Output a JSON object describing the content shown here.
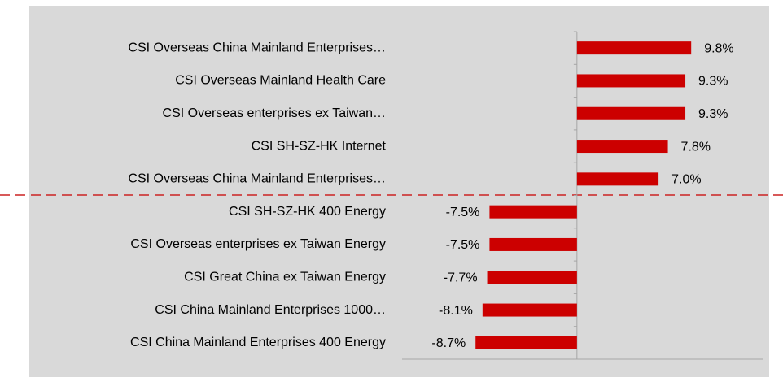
{
  "chart_data": {
    "type": "barh",
    "categories": [
      "CSI Overseas China Mainland Enterprises…",
      "CSI Overseas Mainland Health Care",
      "CSI Overseas enterprises ex Taiwan…",
      "CSI SH-SZ-HK Internet",
      "CSI Overseas China Mainland Enterprises…",
      "CSI SH-SZ-HK 400 Energy",
      "CSI Overseas enterprises ex Taiwan Energy",
      "CSI Great China ex Taiwan Energy",
      "CSI China Mainland Enterprises 1000…",
      "CSI China Mainland Enterprises 400 Energy"
    ],
    "values": [
      9.8,
      9.3,
      9.3,
      7.8,
      7.0,
      -7.5,
      -7.5,
      -7.7,
      -8.1,
      -8.7
    ],
    "value_labels": [
      "9.8%",
      "9.3%",
      "9.3%",
      "7.8%",
      "7.0%",
      "-7.5%",
      "-7.5%",
      "-7.7%",
      "-8.1%",
      "-8.7%"
    ],
    "color": "#cc0000",
    "xlim": [
      -15,
      16
    ]
  }
}
